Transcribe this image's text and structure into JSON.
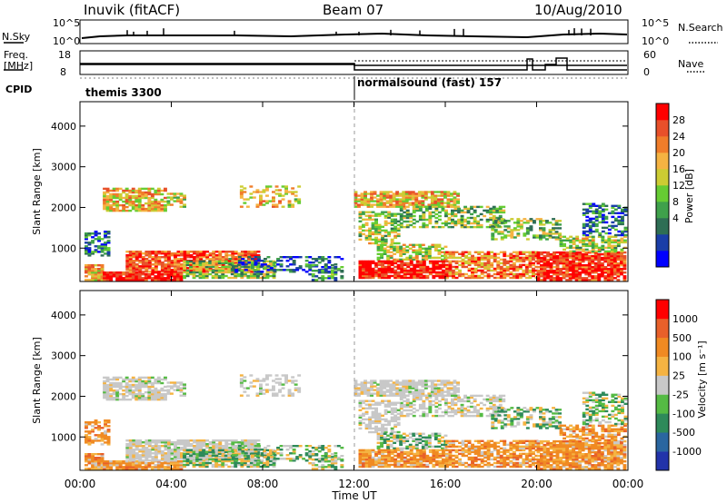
{
  "header": {
    "station": "Inuvik (fitACF)",
    "beam": "Beam 07",
    "date": "10/Aug/2010"
  },
  "panels": {
    "nsky_label": "N.Sky",
    "nsky_ticks": [
      "10^5",
      "10^0"
    ],
    "nsearch_label": "N.Search",
    "freq_label_1": "Freq.",
    "freq_label_2": "[MHz]",
    "freq_ticks": [
      "18",
      "8"
    ],
    "nave_label": "Nave",
    "nave_ticks": [
      "60",
      "0"
    ],
    "cpid_label": "CPID",
    "cpid_1": "themis 3300",
    "cpid_2": "normalsound (fast) 157"
  },
  "chart_data": [
    {
      "type": "heatmap",
      "name": "power",
      "xlabel": "",
      "ylabel": "Slant Range [km]",
      "xlim": [
        0,
        24
      ],
      "ylim": [
        180,
        4600
      ],
      "yticks": [
        "4000",
        "3000",
        "2000",
        "1000"
      ],
      "colorbar_label": "Power [dB]",
      "colorbar_ticks": [
        "28",
        "24",
        "20",
        "16",
        "12",
        "8",
        "4"
      ],
      "colorbar_colors": [
        "#0000ff",
        "#1a3ea8",
        "#2e6e54",
        "#3fa14b",
        "#66cc33",
        "#cccc33",
        "#f5b342",
        "#f07d2a",
        "#e8502a",
        "#ff0000"
      ]
    },
    {
      "type": "heatmap",
      "name": "velocity",
      "xlabel": "Time UT",
      "ylabel": "Slant Range [km]",
      "xlim": [
        0,
        24
      ],
      "ylim": [
        180,
        4600
      ],
      "yticks": [
        "4000",
        "3000",
        "2000",
        "1000"
      ],
      "xticks": [
        "00:00",
        "04:00",
        "08:00",
        "12:00",
        "16:00",
        "20:00",
        "00:00"
      ],
      "colorbar_label": "Velocity [m s⁻¹]",
      "colorbar_ticks": [
        "1000",
        "500",
        "100",
        "25",
        "-25",
        "-100",
        "-500",
        "-1000"
      ],
      "colorbar_colors": [
        "#2233aa",
        "#2a66a0",
        "#2e8a5a",
        "#55bb44",
        "#c8c8c8",
        "#f5b342",
        "#f08a22",
        "#e8602a",
        "#ff0000"
      ]
    }
  ]
}
